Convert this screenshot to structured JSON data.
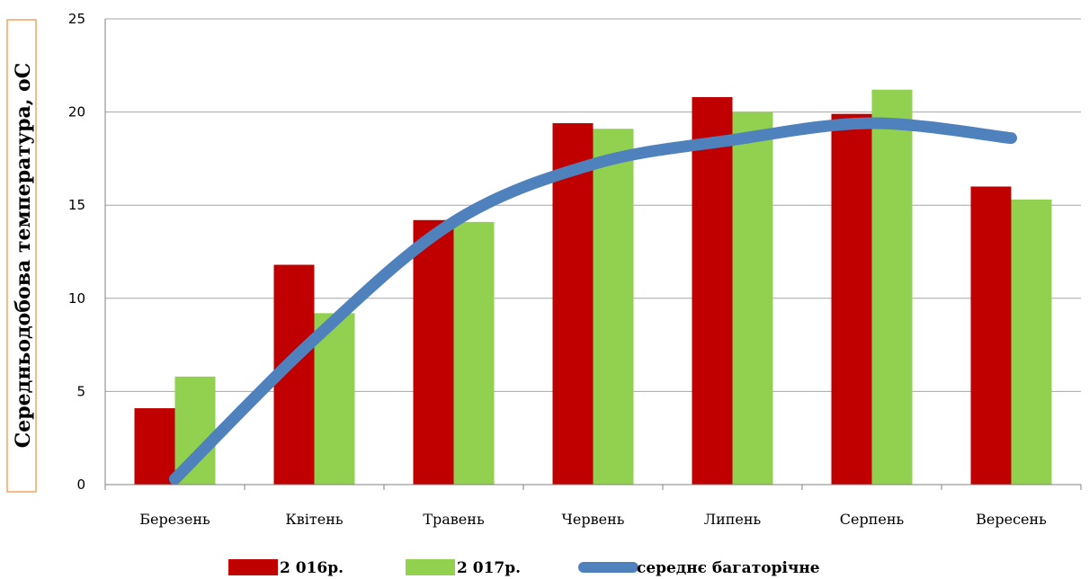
{
  "chart_data": {
    "type": "bar",
    "ylabel": "Середньодобова температура, оС",
    "xlabel": "",
    "ylim": [
      0,
      25
    ],
    "yticks": [
      0,
      5,
      10,
      15,
      20,
      25
    ],
    "grid": true,
    "legend_position": "bottom",
    "categories": [
      "Березень",
      "Квітень",
      "Травень",
      "Червень",
      "Липень",
      "Серпень",
      "Вересень"
    ],
    "series": [
      {
        "name": "2 016р.",
        "kind": "bar",
        "color": "#c00000",
        "values": [
          4.1,
          11.8,
          14.2,
          19.4,
          20.8,
          19.9,
          16.0
        ]
      },
      {
        "name": "2 017р.",
        "kind": "bar",
        "color": "#92d050",
        "values": [
          5.8,
          9.2,
          14.1,
          19.1,
          20.0,
          21.2,
          15.3
        ]
      },
      {
        "name": "середнє багаторічне",
        "kind": "line",
        "color": "#4f81bd",
        "values": [
          0.3,
          7.8,
          14.1,
          17.2,
          18.5,
          19.4,
          18.6
        ]
      }
    ]
  }
}
